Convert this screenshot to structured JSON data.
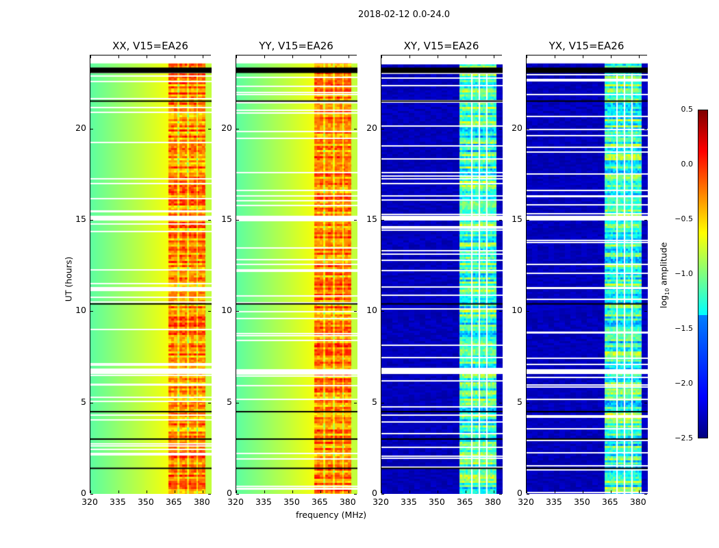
{
  "chart_data": {
    "type": "heatmap",
    "title": "2018-02-12 0.0-24.0",
    "xlabel": "frequency (MHz)",
    "ylabel": "UT (hours)",
    "xlim": [
      320,
      385
    ],
    "ylim": [
      0,
      24
    ],
    "xticks": [
      320,
      335,
      350,
      365,
      380
    ],
    "yticks": [
      0,
      5,
      10,
      15,
      20
    ],
    "panels": [
      {
        "title": "XX, V15=EA26",
        "pol": "XX",
        "base_level": -0.9,
        "band_level": -0.25
      },
      {
        "title": "YY, V15=EA26",
        "pol": "YY",
        "base_level": -0.9,
        "band_level": -0.25
      },
      {
        "title": "XY, V15=EA26",
        "pol": "XY",
        "base_level": -2.4,
        "band_level": -1.2
      },
      {
        "title": "YX, V15=EA26",
        "pol": "YX",
        "base_level": -2.4,
        "band_level": -1.2
      }
    ],
    "colorbar": {
      "label_prefix": "log",
      "label_sub": "10",
      "label_suffix": " amplitude",
      "min": -2.5,
      "max": 0.5,
      "ticks": [
        "0.5",
        "0.0",
        "−0.5",
        "−1.0",
        "−1.5",
        "−2.0",
        "−2.5"
      ],
      "colormap": "jet"
    },
    "flagged_hours_white": [
      6.6,
      15.0,
      23.6
    ],
    "flagged_hours_black": [
      1.4,
      3.0,
      4.5,
      10.4,
      21.5,
      23.3
    ]
  }
}
